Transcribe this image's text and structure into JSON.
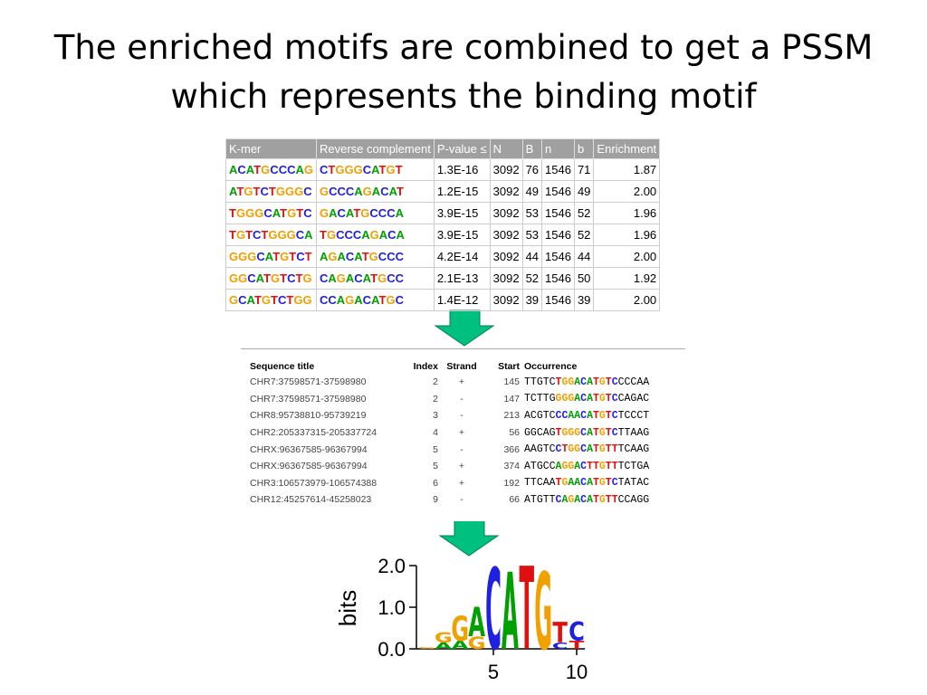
{
  "header": {
    "title": "The enriched motifs are combined to get a PSSM which represents the binding motif"
  },
  "table": {
    "columns": [
      "K-mer",
      "Reverse complement",
      "P-value ≤",
      "N",
      "B",
      "n",
      "b",
      "Enrichment"
    ],
    "rows": [
      [
        "ACATGCCCAG",
        "CTGGGCATGT",
        "1.3E-16",
        "3092",
        "76",
        "1546",
        "71",
        "1.87"
      ],
      [
        "ATGTCTGGGC",
        "GCCCAGACAT",
        "1.2E-15",
        "3092",
        "49",
        "1546",
        "49",
        "2.00"
      ],
      [
        "TGGGCATGTC",
        "GACATGCCCA",
        "3.9E-15",
        "3092",
        "53",
        "1546",
        "52",
        "1.96"
      ],
      [
        "TGTCTGGGCA",
        "TGCCCAGACA",
        "3.9E-15",
        "3092",
        "53",
        "1546",
        "52",
        "1.96"
      ],
      [
        "GGGCATGTCT",
        "AGACATGCCC",
        "4.2E-14",
        "3092",
        "44",
        "1546",
        "44",
        "2.00"
      ],
      [
        "GGCATGTCTG",
        "CAGACATGCC",
        "2.1E-13",
        "3092",
        "52",
        "1546",
        "50",
        "1.92"
      ],
      [
        "GCATGTCTGG",
        "CCAGACATGC",
        "1.4E-12",
        "3092",
        "39",
        "1546",
        "39",
        "2.00"
      ]
    ]
  },
  "occurrences": {
    "columns": [
      "Sequence title",
      "Index",
      "Strand",
      "Start",
      "Occurrence"
    ],
    "rows": [
      [
        "CHR7:37598571-37598980",
        "2",
        "+",
        "145",
        "TTGTCTGGACATGTCCCCAA"
      ],
      [
        "CHR7:37598571-37598980",
        "2",
        "-",
        "147",
        "TCTTGGGGACATGTCCAGAC"
      ],
      [
        "CHR8:95738810-95739219",
        "3",
        "-",
        "213",
        "ACGTCCCAACATGTCTCCCT"
      ],
      [
        "CHR2:205337315-205337724",
        "4",
        "+",
        "56",
        "GGCAGTGGGCATGTCTTAAG"
      ],
      [
        "CHRX:96367585-96367994",
        "5",
        "-",
        "366",
        "AAGTCCTGGCATGTTTCAAG"
      ],
      [
        "CHRX:96367585-96367994",
        "5",
        "+",
        "374",
        "ATGCCAGGACTTGTTTCTGA"
      ],
      [
        "CHR3:106573979-106574388",
        "6",
        "+",
        "192",
        "TTCAATGAACATGTCTATAC"
      ],
      [
        "CHR12:45257614-45258023",
        "9",
        "-",
        "66",
        "ATGTTCAGACATGTTCCAGG"
      ]
    ]
  },
  "logo": {
    "ylabel": "bits",
    "ylim": [
      0,
      2
    ],
    "yticks": [
      {
        "value": 0,
        "label": "0.0"
      },
      {
        "value": 1,
        "label": "1.0"
      },
      {
        "value": 2,
        "label": "2.0"
      }
    ],
    "xlim": [
      0.5,
      10.5
    ],
    "xticks": [
      5,
      10
    ],
    "colors": {
      "A": "#00a000",
      "C": "#2020e0",
      "G": "#f0a000",
      "T": "#e01010"
    },
    "stacks": [
      [
        {
          "letter": "G",
          "bits": 0.04
        }
      ],
      [
        {
          "letter": "A",
          "bits": 0.15
        },
        {
          "letter": "G",
          "bits": 0.25
        }
      ],
      [
        {
          "letter": "A",
          "bits": 0.2
        },
        {
          "letter": "G",
          "bits": 0.6
        }
      ],
      [
        {
          "letter": "G",
          "bits": 0.3
        },
        {
          "letter": "A",
          "bits": 0.7
        }
      ],
      [
        {
          "letter": "C",
          "bits": 1.95
        }
      ],
      [
        {
          "letter": "A",
          "bits": 1.85
        }
      ],
      [
        {
          "letter": "T",
          "bits": 2.0
        }
      ],
      [
        {
          "letter": "G",
          "bits": 1.85
        }
      ],
      [
        {
          "letter": "C",
          "bits": 0.15
        },
        {
          "letter": "T",
          "bits": 0.5
        }
      ],
      [
        {
          "letter": "T",
          "bits": 0.2
        },
        {
          "letter": "C",
          "bits": 0.45
        }
      ]
    ]
  }
}
